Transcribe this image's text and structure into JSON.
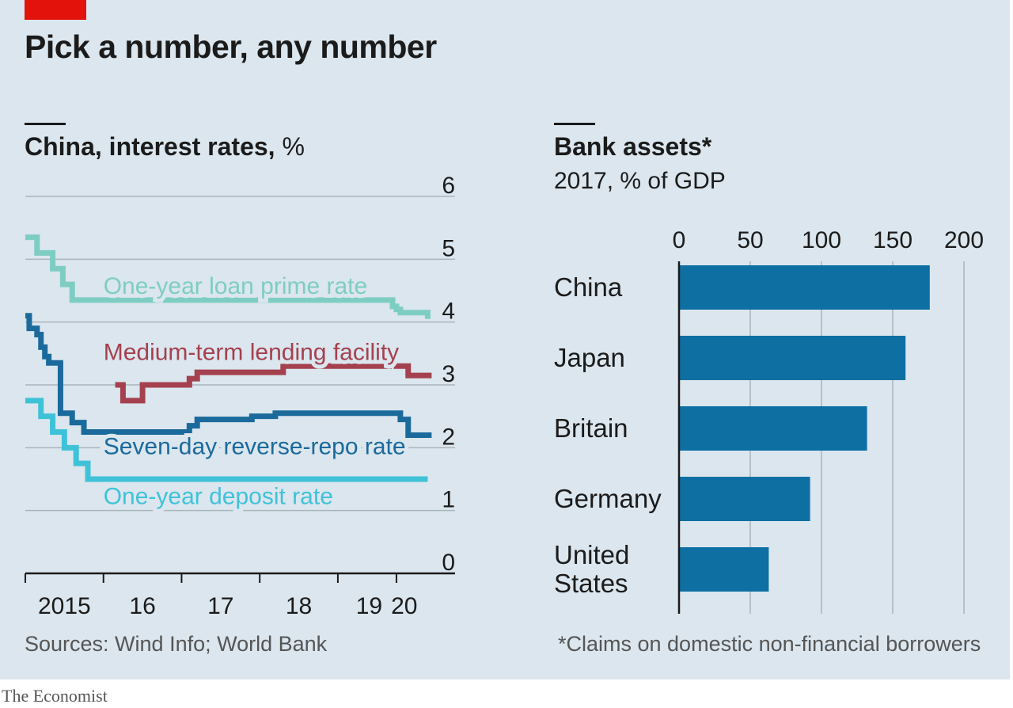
{
  "headline": "Pick a number, any number",
  "source": "Sources: Wind Info; World Bank",
  "brand": "The Economist",
  "colors": {
    "background": "#dbe6ee",
    "loan_prime": "#7ecdc3",
    "mlf": "#a5404f",
    "repo": "#1b6a9c",
    "deposit": "#3fc2d8",
    "bar": "#0e6fa3",
    "accent": "#e3120b"
  },
  "left_chart": {
    "title": "China, interest rates,",
    "unit": " %"
  },
  "right_chart": {
    "title": "Bank assets*",
    "subtitle": "2017, % of GDP",
    "footnote": "*Claims on domestic non-financial borrowers"
  },
  "chart_data": [
    {
      "type": "line",
      "title": "China, interest rates, %",
      "ylim": [
        0,
        6
      ],
      "yticks": [
        "0",
        "1",
        "2",
        "3",
        "4",
        "5",
        "6"
      ],
      "xlim": [
        2015.0,
        2020.5
      ],
      "xticks": [
        {
          "value": 2015.0,
          "label": ""
        },
        {
          "value": 2016.0,
          "label": ""
        },
        {
          "value": 2017.0,
          "label": ""
        },
        {
          "value": 2018.0,
          "label": ""
        },
        {
          "value": 2019.0,
          "label": ""
        },
        {
          "value": 2019.75,
          "label": ""
        }
      ],
      "xlabels": [
        {
          "value": 2015.5,
          "label": "2015"
        },
        {
          "value": 2016.5,
          "label": "16"
        },
        {
          "value": 2017.5,
          "label": "17"
        },
        {
          "value": 2018.5,
          "label": "18"
        },
        {
          "value": 2019.4,
          "label": "19"
        },
        {
          "value": 2019.85,
          "label": "20"
        }
      ],
      "grid": true,
      "series": [
        {
          "name": "One-year loan prime rate",
          "step": true,
          "label_at": [
            2016.0,
            4.45
          ],
          "x": [
            2015.0,
            2015.15,
            2015.35,
            2015.48,
            2015.6,
            2015.8,
            2019.6,
            2019.7,
            2019.75,
            2019.8,
            2020.15
          ],
          "y": [
            5.35,
            5.1,
            4.85,
            4.6,
            4.35,
            4.35,
            4.35,
            4.25,
            4.2,
            4.15,
            4.05
          ]
        },
        {
          "name": "Medium-term lending facility",
          "step": true,
          "label_at": [
            2016.0,
            3.4
          ],
          "x": [
            2016.15,
            2016.25,
            2016.5,
            2017.1,
            2017.2,
            2018.3,
            2019.75,
            2019.9,
            2020.2
          ],
          "y": [
            3.0,
            2.75,
            3.0,
            3.1,
            3.2,
            3.3,
            3.3,
            3.15,
            3.15
          ]
        },
        {
          "name": "Seven-day reverse-repo rate",
          "step": true,
          "label_at": [
            2016.0,
            1.9
          ],
          "x": [
            2015.0,
            2015.05,
            2015.15,
            2015.2,
            2015.25,
            2015.3,
            2015.45,
            2015.6,
            2015.75,
            2016.0,
            2017.1,
            2017.2,
            2017.9,
            2018.2,
            2019.7,
            2019.8,
            2019.9,
            2020.2
          ],
          "y": [
            4.1,
            3.9,
            3.8,
            3.6,
            3.45,
            3.35,
            2.55,
            2.4,
            2.25,
            2.25,
            2.35,
            2.45,
            2.5,
            2.55,
            2.55,
            2.45,
            2.2,
            2.2
          ]
        },
        {
          "name": "One-year deposit rate",
          "step": true,
          "label_at": [
            2016.0,
            1.1
          ],
          "x": [
            2015.0,
            2015.2,
            2015.35,
            2015.5,
            2015.65,
            2015.8,
            2020.15
          ],
          "y": [
            2.75,
            2.5,
            2.25,
            2.0,
            1.75,
            1.5,
            1.5
          ]
        }
      ]
    },
    {
      "type": "bar",
      "orientation": "horizontal",
      "title": "Bank assets*",
      "subtitle": "2017, % of GDP",
      "categories": [
        "China",
        "Japan",
        "Britain",
        "Germany",
        "United\nStates"
      ],
      "values": [
        176,
        159,
        132,
        92,
        63
      ],
      "xlim": [
        0,
        200
      ],
      "xticks": [
        0,
        50,
        100,
        150,
        200
      ],
      "grid": true
    }
  ]
}
